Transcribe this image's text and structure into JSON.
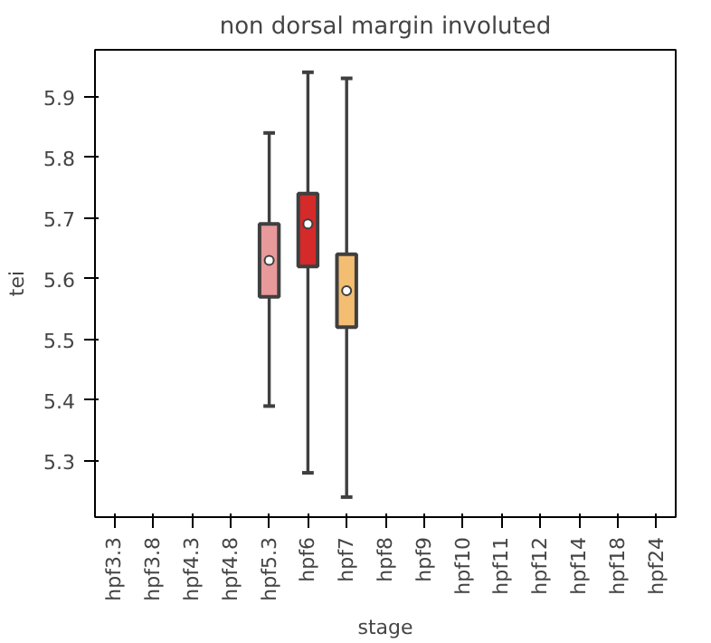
{
  "chart_data": {
    "type": "box",
    "title": "non dorsal margin involuted",
    "xlabel": "stage",
    "ylabel": "tei",
    "categories": [
      "hpf3.3",
      "hpf3.8",
      "hpf4.3",
      "hpf4.8",
      "hpf5.3",
      "hpf6",
      "hpf7",
      "hpf8",
      "hpf9",
      "hpf10",
      "hpf11",
      "hpf12",
      "hpf14",
      "hpf18",
      "hpf24"
    ],
    "boxes": [
      null,
      null,
      null,
      null,
      {
        "low": 5.39,
        "q1": 5.57,
        "median": 5.63,
        "q3": 5.69,
        "high": 5.84
      },
      {
        "low": 5.28,
        "q1": 5.62,
        "median": 5.69,
        "q3": 5.74,
        "high": 5.94
      },
      {
        "low": 5.24,
        "q1": 5.52,
        "median": 5.58,
        "q3": 5.64,
        "high": 5.93
      },
      null,
      null,
      null,
      null,
      null,
      null,
      null,
      null
    ],
    "colors": [
      null,
      null,
      null,
      null,
      "#e8999a",
      "#d42a2a",
      "#f3be72",
      null,
      null,
      null,
      null,
      null,
      null,
      null,
      null
    ],
    "ylim": [
      5.207,
      5.977
    ],
    "yticks": [
      5.3,
      5.4,
      5.5,
      5.6,
      5.7,
      5.8,
      5.9
    ],
    "grid": false
  }
}
